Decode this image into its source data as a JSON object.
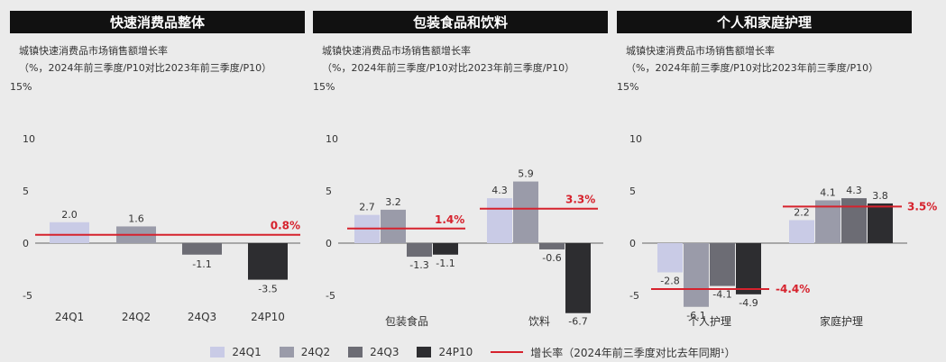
{
  "legend": {
    "items": [
      {
        "label": "24Q1",
        "color": "#c9cbe6"
      },
      {
        "label": "24Q2",
        "color": "#9a9ba9"
      },
      {
        "label": "24Q3",
        "color": "#6c6c74"
      },
      {
        "label": "24P10",
        "color": "#2d2d30"
      }
    ],
    "line_label": "增长率（2024年前三季度对比去年同期¹）",
    "line_color": "#d6222d"
  },
  "chart_data": [
    {
      "type": "bar",
      "title": "快速消费品整体",
      "subtitle": "城镇快速消费品市场销售额增长率",
      "unit_note": "（%，2024年前三季度/P10对比2023年前三季度/P10）",
      "ylim": [
        -5,
        15
      ],
      "yticks": [
        {
          "v": 15,
          "label": "15%"
        },
        {
          "v": 10,
          "label": "10"
        },
        {
          "v": 5,
          "label": "5"
        },
        {
          "v": 0,
          "label": "0"
        },
        {
          "v": -5,
          "label": "-5"
        }
      ],
      "categories": [
        "24Q1",
        "24Q2",
        "24Q3",
        "24P10"
      ],
      "values": [
        2.0,
        1.6,
        -1.1,
        -3.5
      ],
      "value_labels": [
        "2.0",
        "1.6",
        "-1.1",
        "-3.5"
      ],
      "growth": [
        {
          "value": 0.8,
          "label": "0.8%"
        }
      ]
    },
    {
      "type": "bar",
      "title": "包装食品和饮料",
      "subtitle": "城镇快速消费品市场销售额增长率",
      "unit_note": "（%，2024年前三季度/P10对比2023年前三季度/P10）",
      "ylim": [
        -5,
        15
      ],
      "yticks": [
        {
          "v": 15,
          "label": "15%"
        },
        {
          "v": 10,
          "label": "10"
        },
        {
          "v": 5,
          "label": "5"
        },
        {
          "v": 0,
          "label": "0"
        },
        {
          "v": -5,
          "label": "-5"
        }
      ],
      "categories": [
        "包装食品",
        "饮料"
      ],
      "series": [
        {
          "name": "24Q1",
          "values": [
            2.7,
            4.3
          ],
          "labels": [
            "2.7",
            "4.3"
          ]
        },
        {
          "name": "24Q2",
          "values": [
            3.2,
            5.9
          ],
          "labels": [
            "3.2",
            "5.9"
          ]
        },
        {
          "name": "24Q3",
          "values": [
            -1.3,
            -0.6
          ],
          "labels": [
            "-1.3",
            "-0.6"
          ]
        },
        {
          "name": "24P10",
          "values": [
            -1.1,
            -6.7
          ],
          "labels": [
            "-1.1",
            "-6.7"
          ]
        }
      ],
      "growth": [
        {
          "value": 1.4,
          "label": "1.4%"
        },
        {
          "value": 3.3,
          "label": "3.3%"
        }
      ]
    },
    {
      "type": "bar",
      "title": "个人和家庭护理",
      "subtitle": "城镇快速消费品市场销售额增长率",
      "unit_note": "（%，2024年前三季度/P10对比2023年前三季度/P10）",
      "ylim": [
        -5,
        15
      ],
      "yticks": [
        {
          "v": 15,
          "label": "15%"
        },
        {
          "v": 10,
          "label": "10"
        },
        {
          "v": 5,
          "label": "5"
        },
        {
          "v": 0,
          "label": "0"
        },
        {
          "v": -5,
          "label": "-5"
        }
      ],
      "categories": [
        "个人护理",
        "家庭护理"
      ],
      "series": [
        {
          "name": "24Q1",
          "values": [
            -2.8,
            2.2
          ],
          "labels": [
            "-2.8",
            "2.2"
          ]
        },
        {
          "name": "24Q2",
          "values": [
            -6.1,
            4.1
          ],
          "labels": [
            "-6.1",
            "4.1"
          ]
        },
        {
          "name": "24Q3",
          "values": [
            -4.1,
            4.3
          ],
          "labels": [
            "-4.1",
            "4.3"
          ]
        },
        {
          "name": "24P10",
          "values": [
            -4.9,
            3.8
          ],
          "labels": [
            "-4.9",
            "3.8"
          ]
        }
      ],
      "growth": [
        {
          "value": -4.4,
          "label": "-4.4%"
        },
        {
          "value": 3.5,
          "label": "3.5%"
        }
      ]
    }
  ]
}
